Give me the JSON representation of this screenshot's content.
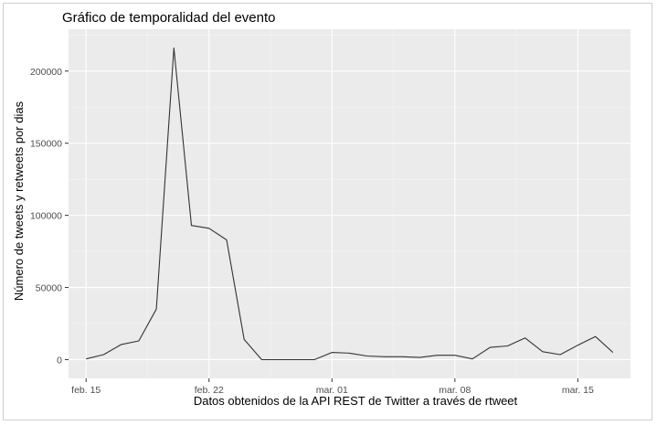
{
  "chart_data": {
    "type": "line",
    "title": "Gráfico de temporalidad del evento",
    "xlabel": "Datos obtenidos de la API REST de Twitter a través de rtweet",
    "ylabel": "Número de tweets y retweets por dias",
    "x_ticks": [
      "feb. 15",
      "feb. 22",
      "mar. 01",
      "mar. 08",
      "mar. 15"
    ],
    "y_ticks": [
      0,
      50000,
      100000,
      150000,
      200000
    ],
    "y_tick_labels": [
      "0",
      "50000",
      "100000",
      "150000",
      "200000"
    ],
    "ylim": [
      -13000,
      229000
    ],
    "xlim": [
      "2018-02-14",
      "2018-03-18"
    ],
    "grid": true,
    "background": "#ebebeb",
    "line_color": "#333333",
    "x": [
      "2018-02-15",
      "2018-02-16",
      "2018-02-17",
      "2018-02-18",
      "2018-02-19",
      "2018-02-20",
      "2018-02-21",
      "2018-02-22",
      "2018-02-23",
      "2018-02-24",
      "2018-02-25",
      "2018-02-26",
      "2018-02-27",
      "2018-02-28",
      "2018-03-01",
      "2018-03-02",
      "2018-03-03",
      "2018-03-04",
      "2018-03-05",
      "2018-03-06",
      "2018-03-07",
      "2018-03-08",
      "2018-03-09",
      "2018-03-10",
      "2018-03-11",
      "2018-03-12",
      "2018-03-13",
      "2018-03-14",
      "2018-03-15",
      "2018-03-16",
      "2018-03-17"
    ],
    "values": [
      500,
      3500,
      10500,
      13000,
      35000,
      216000,
      93000,
      91000,
      83000,
      14000,
      0,
      0,
      0,
      0,
      5000,
      4500,
      2500,
      2000,
      2000,
      1500,
      3000,
      3000,
      500,
      8500,
      9500,
      15000,
      5500,
      3500,
      10000,
      16000,
      5000
    ]
  }
}
